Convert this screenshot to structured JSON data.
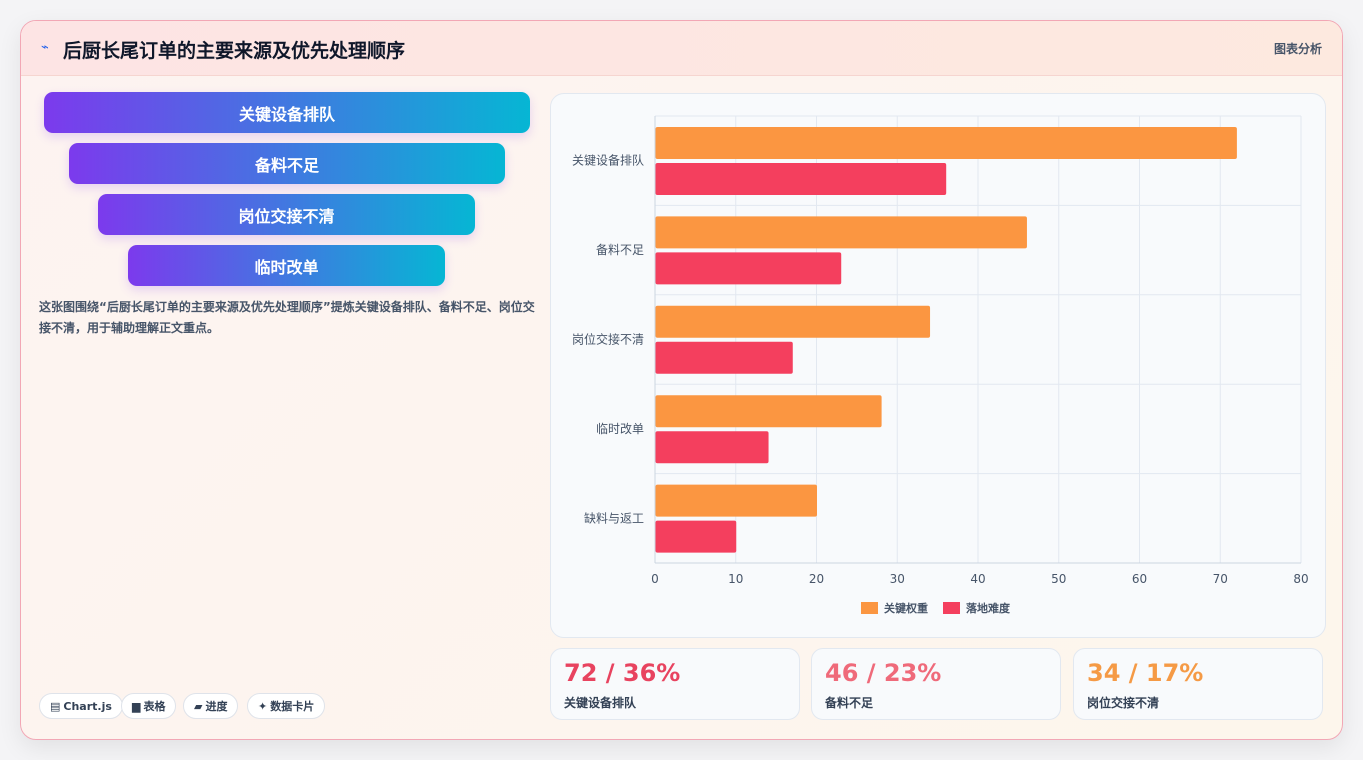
{
  "header": {
    "icon": "trend-line-icon",
    "title": "后厨长尾订单的主要来源及优先处理顺序",
    "link_label": "图表分析"
  },
  "funnel": {
    "items": [
      "关键设备排队",
      "备料不足",
      "岗位交接不清",
      "临时改单"
    ]
  },
  "description": "这张图围绕“后厨长尾订单的主要来源及优先处理顺序”提炼关键设备排队、备料不足、岗位交接不清，用于辅助理解正文重点。",
  "chips": [
    {
      "icon": "chart-icon",
      "label": "Chart.js"
    },
    {
      "icon": "table-icon",
      "label": "表格"
    },
    {
      "icon": "progress-icon",
      "label": "进度"
    },
    {
      "icon": "sparkle-icon",
      "label": "数据卡片"
    }
  ],
  "stats": [
    {
      "value": "72 / 36%",
      "label": "关键设备排队",
      "color": "#e8435f"
    },
    {
      "value": "46 / 23%",
      "label": "备料不足",
      "color": "#ef6a7a"
    },
    {
      "value": "34 / 17%",
      "label": "岗位交接不清",
      "color": "#f59a45"
    }
  ],
  "chart_data": {
    "type": "bar",
    "orientation": "horizontal",
    "categories": [
      "关键设备排队",
      "备料不足",
      "岗位交接不清",
      "临时改单",
      "缺料与返工"
    ],
    "series": [
      {
        "name": "关键权重",
        "values": [
          72,
          46,
          34,
          28,
          20
        ],
        "color": "#fb9641"
      },
      {
        "name": "落地难度",
        "values": [
          36,
          23,
          17,
          14,
          10
        ],
        "color": "#f43f5e"
      }
    ],
    "xlim": [
      0,
      80
    ],
    "xticks": [
      0,
      10,
      20,
      30,
      40,
      50,
      60,
      70,
      80
    ],
    "grid": true,
    "legend_position": "bottom"
  }
}
